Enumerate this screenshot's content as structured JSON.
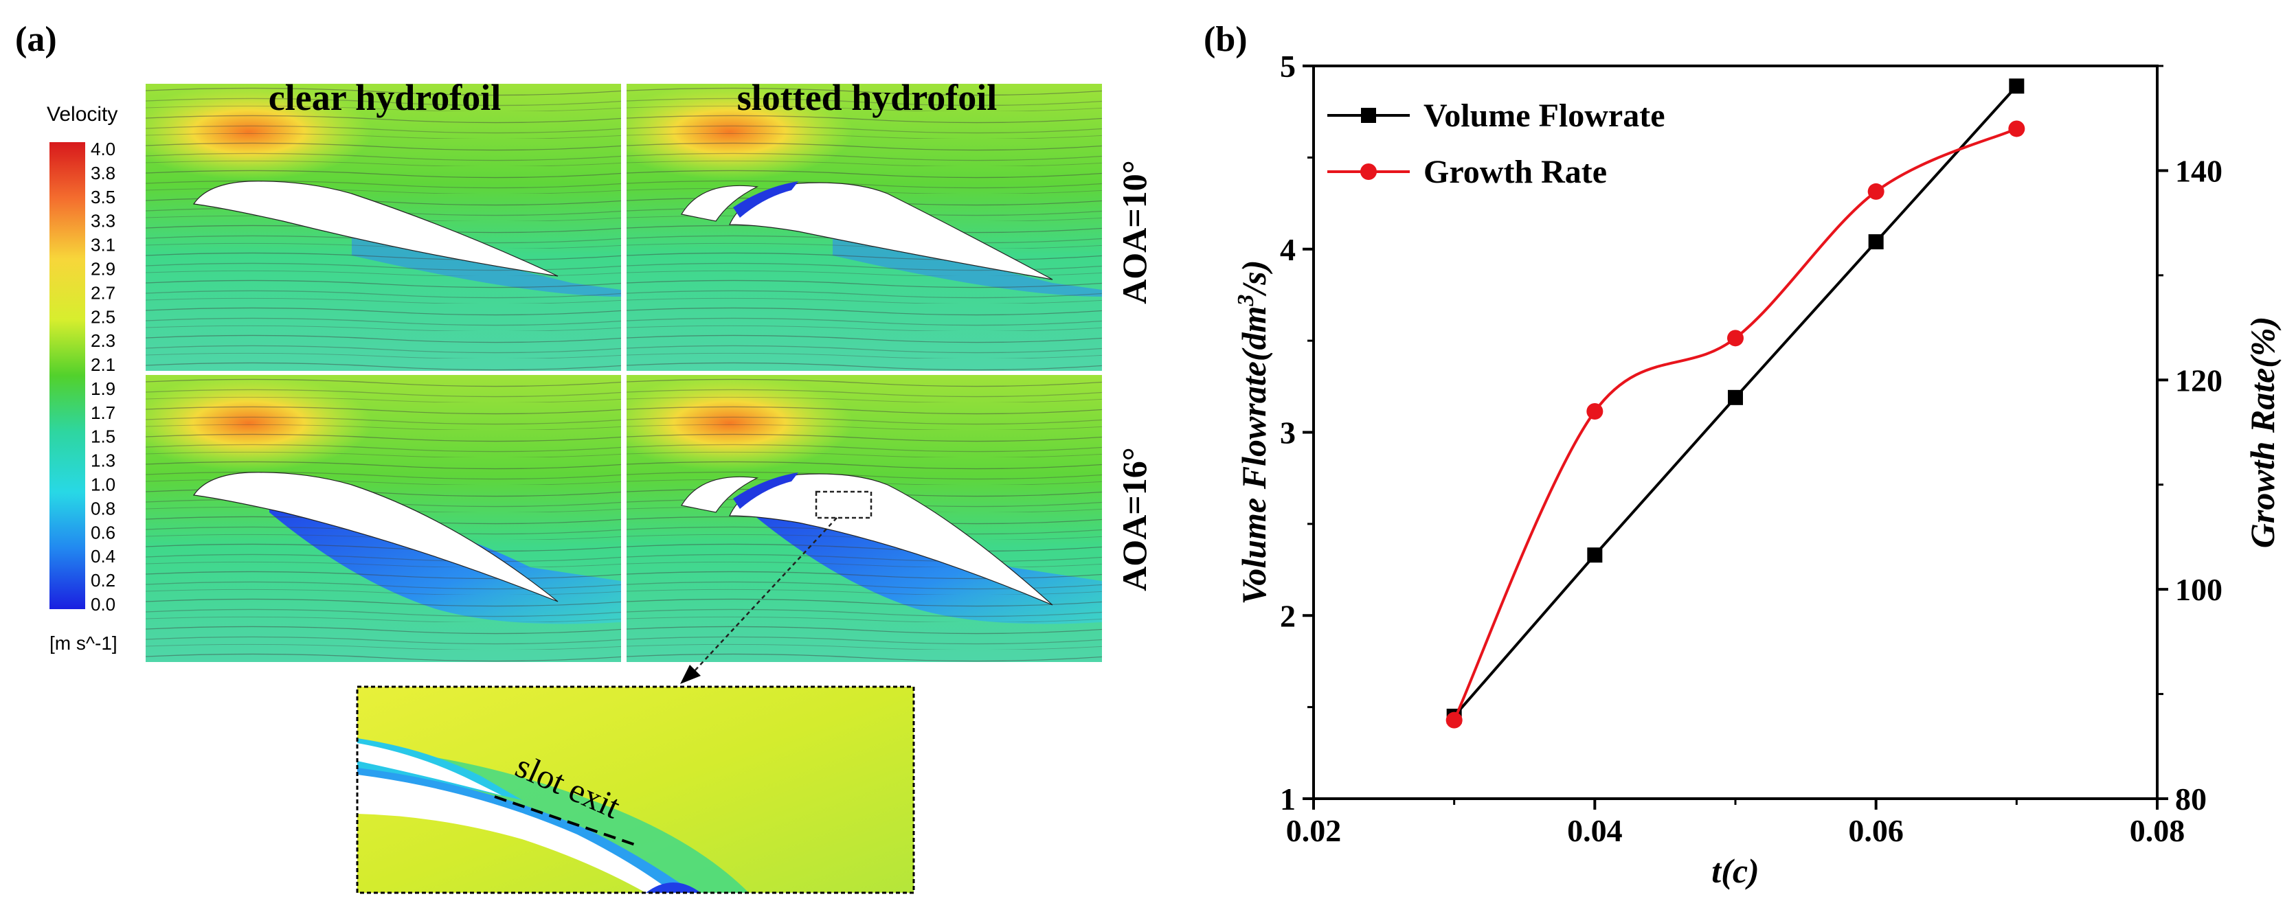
{
  "panel_a": {
    "label": "(a)",
    "legend": {
      "title": "Velocity",
      "ticks": [
        "4.0",
        "3.8",
        "3.5",
        "3.3",
        "3.1",
        "2.9",
        "2.7",
        "2.5",
        "2.3",
        "2.1",
        "1.9",
        "1.7",
        "1.5",
        "1.3",
        "1.0",
        "0.8",
        "0.6",
        "0.4",
        "0.2",
        "0.0"
      ],
      "unit": "[m s^-1]"
    },
    "col_titles": [
      "clear hydrofoil",
      "slotted hydrofoil"
    ],
    "row_titles": [
      "AOA=10°",
      "AOA=16°"
    ],
    "zoom_label": "slot exit"
  },
  "panel_b": {
    "label": "(b)"
  },
  "colors": {
    "flowrate": "#000000",
    "growth": "#e8141c"
  },
  "chart_data": {
    "type": "line",
    "title": "",
    "xlabel": "t(c)",
    "ylabel": "Volume Flowrate(dm³/s)",
    "ylabel_parts": {
      "base": "Volume Flowrate(dm",
      "sup": "3",
      "tail": "/s)"
    },
    "y2label": "Growth Rate(%)",
    "xlim": [
      0.02,
      0.08
    ],
    "ylim": [
      1,
      5
    ],
    "y2lim": [
      80,
      150
    ],
    "xticks": [
      "0.02",
      "0.04",
      "0.06",
      "0.08"
    ],
    "xtick_values": [
      0.02,
      0.04,
      0.06,
      0.08
    ],
    "yticks": [
      "1",
      "2",
      "3",
      "4",
      "5"
    ],
    "ytick_values": [
      1,
      2,
      3,
      4,
      5
    ],
    "y2ticks": [
      "80",
      "100",
      "120",
      "140"
    ],
    "y2tick_values": [
      80,
      100,
      120,
      140
    ],
    "legend_position": "top-left",
    "x": [
      0.03,
      0.04,
      0.05,
      0.06,
      0.07
    ],
    "series": [
      {
        "name": "Volume Flowrate",
        "axis": "left",
        "marker": "square",
        "line": "straight",
        "values": [
          1.45,
          2.33,
          3.19,
          4.04,
          4.89
        ]
      },
      {
        "name": "Growth Rate",
        "axis": "right",
        "marker": "circle",
        "line": "smooth",
        "values": [
          87.5,
          117,
          124,
          138,
          144
        ]
      }
    ]
  }
}
